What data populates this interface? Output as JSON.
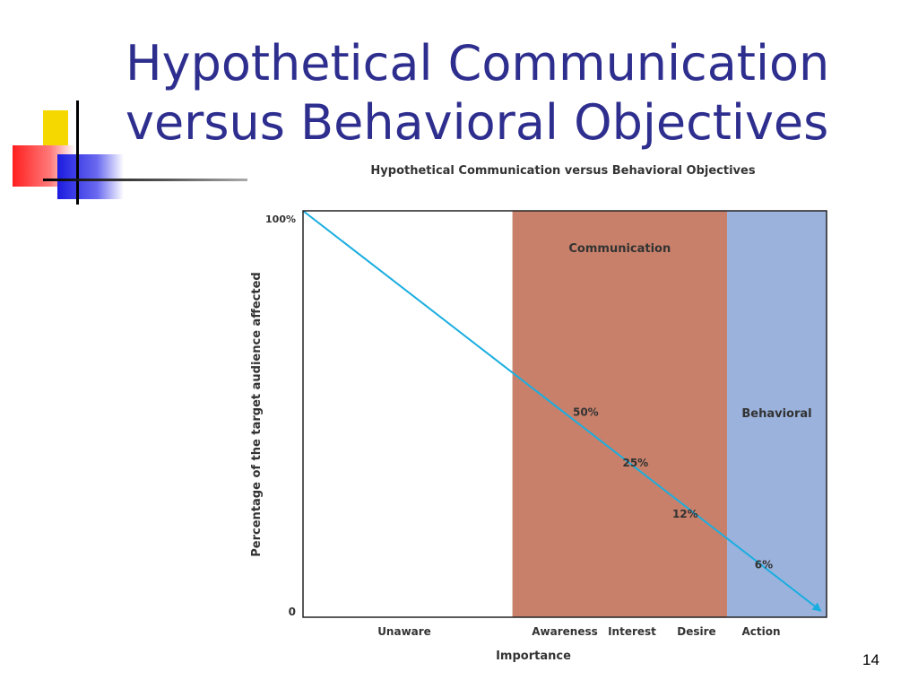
{
  "slide": {
    "title_line1": "Hypothetical Communication",
    "title_line2": "versus Behavioral Objectives",
    "page_number": "14"
  },
  "chart_data": {
    "type": "line",
    "title": "Hypothetical Communication versus Behavioral Objectives",
    "xlabel": "Importance",
    "ylabel": "Percentage of the target audience affected",
    "categories": [
      "Unaware",
      "Awareness",
      "Interest",
      "Desire",
      "Action"
    ],
    "y_ticks": [
      "0",
      "100%"
    ],
    "ylim": [
      0,
      100
    ],
    "grid": false,
    "regions": [
      {
        "name": "Unaware",
        "label": "",
        "from": 0.0,
        "to": 0.4,
        "color": "#ffffff"
      },
      {
        "name": "Communication",
        "label": "Communication",
        "from": 0.4,
        "to": 0.81,
        "color": "#c8806a"
      },
      {
        "name": "Behavioral",
        "label": "Behavioral",
        "from": 0.81,
        "to": 1.0,
        "color": "#9ab2dc"
      }
    ],
    "series": [
      {
        "values": [
          100,
          50,
          25,
          12,
          6
        ],
        "color": "#1aaee0"
      }
    ],
    "point_labels": [
      {
        "x": 0.54,
        "y": 50,
        "text": "50%"
      },
      {
        "x": 0.635,
        "y": 37.5,
        "text": "25%"
      },
      {
        "x": 0.73,
        "y": 25,
        "text": "12%"
      },
      {
        "x": 0.88,
        "y": 12.5,
        "text": "6%"
      }
    ],
    "line_from": [
      0,
      100
    ],
    "line_to": [
      1.0,
      1
    ]
  }
}
